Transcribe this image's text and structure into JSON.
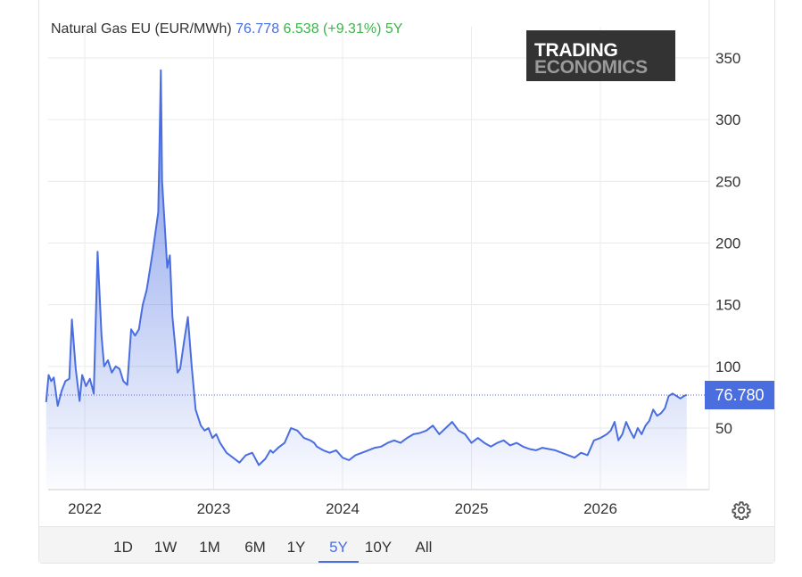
{
  "header": {
    "name": "Natural Gas EU (EUR/MWh)",
    "price": "76.778",
    "change": "6.538 (+9.31%)",
    "period": "5Y"
  },
  "watermark": {
    "line1": "TRADING",
    "line2": "ECONOMICS"
  },
  "last_value_label": "76.780",
  "range_buttons": [
    "1D",
    "1W",
    "1M",
    "6M",
    "1Y",
    "5Y",
    "10Y",
    "All"
  ],
  "active_range": "5Y",
  "colors": {
    "line": "#4a6ee0",
    "up": "#3cb54a",
    "watermark_bg": "#333333"
  },
  "icons": {
    "settings": "gear-icon"
  },
  "chart_data": {
    "type": "area",
    "title": "Natural Gas EU (EUR/MWh)",
    "xlabel": "",
    "ylabel": "",
    "yticks": [
      50,
      100,
      150,
      200,
      250,
      300,
      350
    ],
    "xticks": [
      "2022",
      "2023",
      "2024",
      "2025",
      "2026"
    ],
    "ylim": [
      0,
      370
    ],
    "xlim": [
      2021.7,
      2026.8
    ],
    "last_value": 76.78,
    "grid": true,
    "series": [
      {
        "name": "Natural Gas EU",
        "x": [
          2021.7,
          2021.72,
          2021.74,
          2021.76,
          2021.79,
          2021.82,
          2021.85,
          2021.88,
          2021.9,
          2021.93,
          2021.96,
          2021.98,
          2022.01,
          2022.04,
          2022.07,
          2022.1,
          2022.13,
          2022.15,
          2022.18,
          2022.21,
          2022.24,
          2022.27,
          2022.3,
          2022.33,
          2022.36,
          2022.39,
          2022.42,
          2022.45,
          2022.48,
          2022.5,
          2022.53,
          2022.55,
          2022.57,
          2022.58,
          2022.59,
          2022.6,
          2022.62,
          2022.64,
          2022.66,
          2022.68,
          2022.7,
          2022.72,
          2022.74,
          2022.77,
          2022.8,
          2022.83,
          2022.86,
          2022.9,
          2022.93,
          2022.96,
          2022.99,
          2023.02,
          2023.05,
          2023.1,
          2023.15,
          2023.2,
          2023.25,
          2023.3,
          2023.35,
          2023.4,
          2023.44,
          2023.46,
          2023.5,
          2023.55,
          2023.6,
          2023.65,
          2023.7,
          2023.75,
          2023.78,
          2023.8,
          2023.85,
          2023.9,
          2023.95,
          2024.0,
          2024.05,
          2024.1,
          2024.15,
          2024.2,
          2024.25,
          2024.3,
          2024.35,
          2024.4,
          2024.45,
          2024.5,
          2024.55,
          2024.6,
          2024.65,
          2024.7,
          2024.75,
          2024.8,
          2024.85,
          2024.9,
          2024.95,
          2025.0,
          2025.05,
          2025.1,
          2025.15,
          2025.2,
          2025.25,
          2025.3,
          2025.35,
          2025.4,
          2025.45,
          2025.5,
          2025.55,
          2025.6,
          2025.65,
          2025.7,
          2025.75,
          2025.8,
          2025.85,
          2025.9,
          2025.95,
          2026.0,
          2026.05,
          2026.08,
          2026.11,
          2026.14,
          2026.17,
          2026.2,
          2026.23,
          2026.26,
          2026.29,
          2026.32,
          2026.35,
          2026.38,
          2026.41,
          2026.44,
          2026.47,
          2026.5,
          2026.53,
          2026.56,
          2026.59,
          2026.62,
          2026.65,
          2026.67
        ],
        "values": [
          71,
          93,
          88,
          91,
          68,
          80,
          88,
          90,
          138,
          98,
          72,
          93,
          84,
          90,
          78,
          193,
          125,
          100,
          105,
          95,
          100,
          98,
          88,
          85,
          130,
          125,
          130,
          150,
          162,
          175,
          195,
          210,
          225,
          280,
          340,
          250,
          215,
          180,
          190,
          140,
          118,
          95,
          98,
          120,
          140,
          100,
          65,
          52,
          48,
          50,
          42,
          45,
          38,
          30,
          26,
          22,
          28,
          30,
          20,
          25,
          32,
          30,
          34,
          38,
          50,
          48,
          42,
          40,
          38,
          35,
          32,
          30,
          32,
          26,
          24,
          28,
          30,
          32,
          34,
          35,
          38,
          40,
          38,
          42,
          45,
          46,
          48,
          52,
          45,
          50,
          55,
          48,
          45,
          38,
          42,
          38,
          35,
          38,
          40,
          36,
          38,
          35,
          33,
          32,
          34,
          33,
          32,
          30,
          28,
          26,
          30,
          28,
          40,
          42,
          45,
          48,
          55,
          40,
          45,
          55,
          48,
          42,
          50,
          45,
          52,
          56,
          65,
          60,
          62,
          66,
          76,
          78,
          76,
          74,
          76,
          77
        ]
      }
    ]
  }
}
